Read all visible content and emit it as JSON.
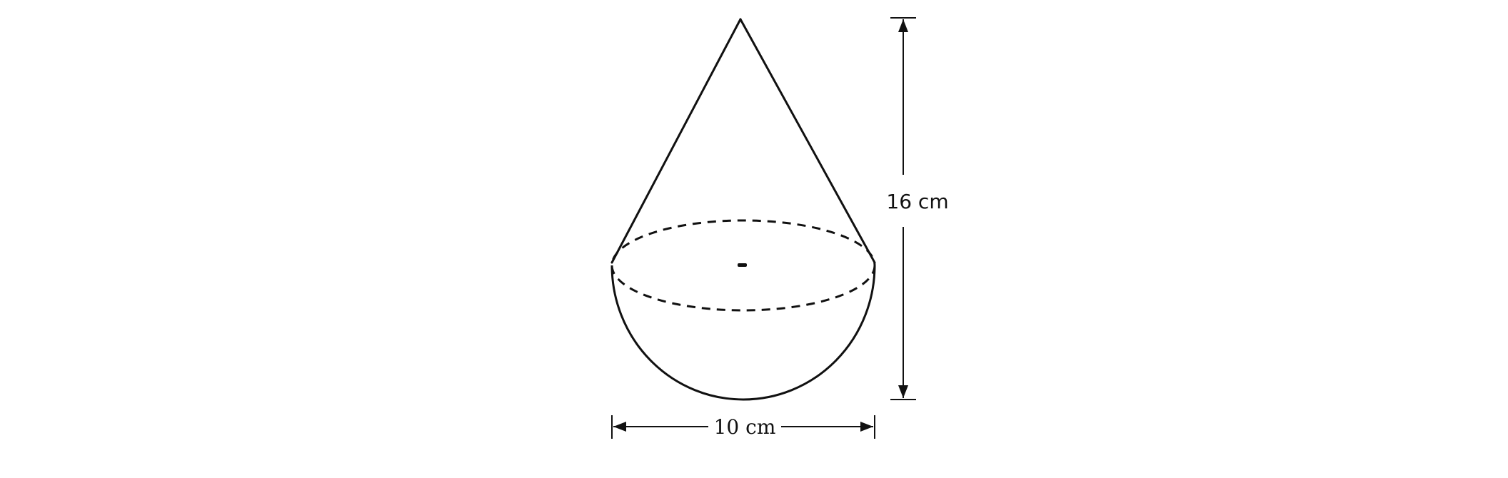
{
  "figure": {
    "height_label": "16 cm",
    "width_label": "10 cm"
  },
  "colors": {
    "background": "#ffffff",
    "stroke": "#111111"
  }
}
